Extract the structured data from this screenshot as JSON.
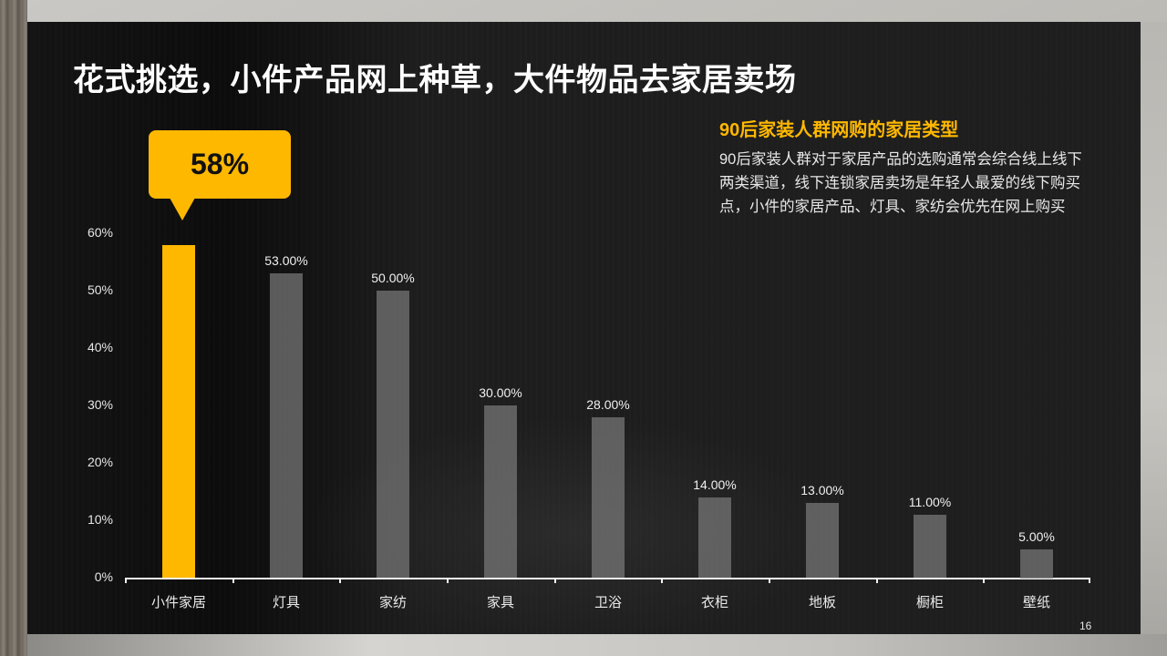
{
  "slide": {
    "title": "花式挑选，小件产品网上种草，大件物品去家居卖场",
    "page_number": "16"
  },
  "sidebar_text": {
    "heading": "90后家装人群网购的家居类型",
    "body": "90后家装人群对于家居产品的选购通常会综合线上线下两类渠道，线下连锁家居卖场是年轻人最爱的线下购买点，小件的家居产品、灯具、家纺会优先在网上购买"
  },
  "callout": {
    "text": "58%",
    "color": "#ffb800"
  },
  "colors": {
    "highlight": "#ffb800",
    "bar": "#787878",
    "background_panel": "#1c1c1c",
    "text": "#ffffff"
  },
  "y_axis": {
    "ticks": [
      "0%",
      "10%",
      "20%",
      "30%",
      "40%",
      "50%",
      "60%"
    ]
  },
  "chart_data": {
    "type": "bar",
    "title": "90后家装人群网购的家居类型",
    "xlabel": "",
    "ylabel": "",
    "ylim": [
      0,
      60
    ],
    "grid": false,
    "legend": null,
    "categories": [
      "小件家居",
      "灯具",
      "家纺",
      "家具",
      "卫浴",
      "衣柜",
      "地板",
      "橱柜",
      "壁纸"
    ],
    "values": [
      58,
      53,
      50,
      30,
      28,
      14,
      13,
      11,
      5
    ],
    "value_labels": [
      "",
      "53.00%",
      "50.00%",
      "30.00%",
      "28.00%",
      "14.00%",
      "13.00%",
      "11.00%",
      "5.00%"
    ],
    "highlight_index": 0,
    "annotations": [
      {
        "category": "小件家居",
        "text": "58%"
      }
    ]
  }
}
